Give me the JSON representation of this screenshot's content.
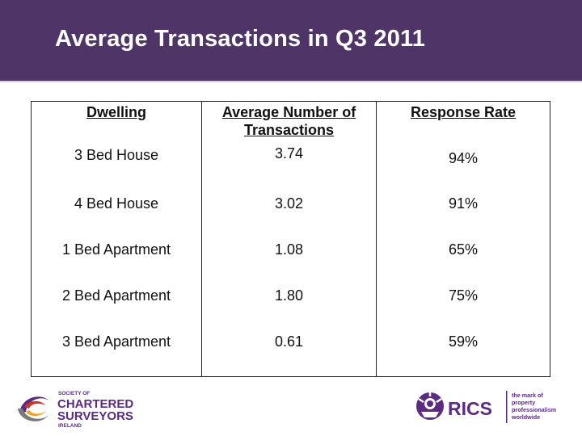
{
  "slide": {
    "title": "Average Transactions in Q3 2011"
  },
  "table": {
    "headers": [
      "Dwelling",
      "Average Number of Transactions",
      "Response Rate"
    ],
    "rows": [
      [
        "3 Bed House",
        "3.74",
        "94%"
      ],
      [
        "4 Bed House",
        "3.02",
        "91%"
      ],
      [
        "1 Bed Apartment",
        "1.08",
        "65%"
      ],
      [
        "2 Bed Apartment",
        "1.80",
        "75%"
      ],
      [
        "3 Bed Apartment",
        "0.61",
        "59%"
      ]
    ]
  },
  "logos": {
    "left": {
      "line1": "SOCIETY OF",
      "line2": "CHARTERED",
      "line3": "SURVEYORS",
      "line4": "IRELAND"
    },
    "right": {
      "wordmark": "RICS",
      "tagline1": "the mark of",
      "tagline2": "property",
      "tagline3": "professionalism",
      "tagline4": "worldwide"
    }
  },
  "colors": {
    "header_bg": "#4f3468",
    "logo_purple": "#5b2a83",
    "logo_grey": "#8a8a8a"
  }
}
